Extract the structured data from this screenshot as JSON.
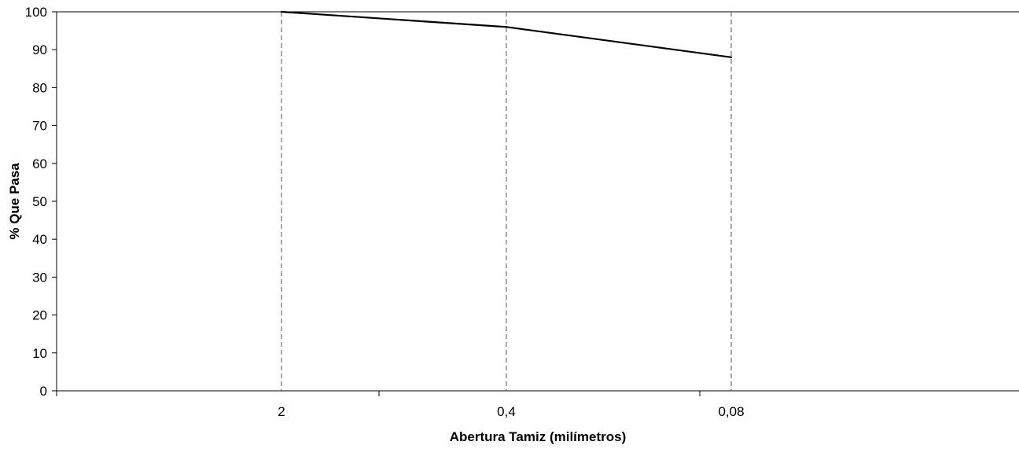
{
  "chart_data": {
    "type": "line",
    "xlabel": "Abertura Tamiz (milímetros)",
    "ylabel": "% Que Pasa",
    "categories": [
      "2",
      "0,4",
      "0,08"
    ],
    "series": [
      {
        "values": [
          100,
          96,
          88
        ]
      }
    ],
    "ylim": [
      0,
      100
    ],
    "yticks": [
      0,
      10,
      20,
      30,
      40,
      50,
      60,
      70,
      80,
      90,
      100
    ],
    "grid": "vertical dashed lines at category points",
    "legend": "none",
    "colors": {
      "line": "#000000",
      "axis": "#000000",
      "gridline": "#555555",
      "background": "#ffffff"
    }
  }
}
